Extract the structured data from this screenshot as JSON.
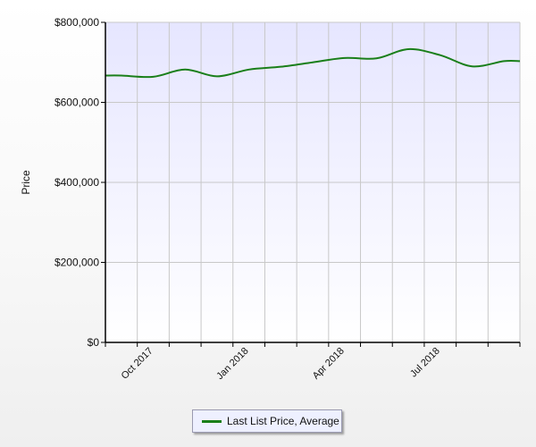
{
  "chart_data": {
    "type": "line",
    "title": "",
    "xlabel": "",
    "ylabel": "Price",
    "ylim": [
      0,
      800000
    ],
    "y_ticks": [
      {
        "value": 0,
        "label": "$0"
      },
      {
        "value": 200000,
        "label": "$200,000"
      },
      {
        "value": 400000,
        "label": "$400,000"
      },
      {
        "value": 600000,
        "label": "$600,000"
      },
      {
        "value": 800000,
        "label": "$800,000"
      }
    ],
    "x": [
      "Sep 2017",
      "Oct 2017",
      "Nov 2017",
      "Dec 2017",
      "Jan 2018",
      "Feb 2018",
      "Mar 2018",
      "Apr 2018",
      "May 2018",
      "Jun 2018",
      "Jul 2018",
      "Aug 2018",
      "Sep 2018"
    ],
    "x_tick_labels": [
      {
        "x": "Oct 2017",
        "label": "Oct 2017"
      },
      {
        "x": "Jan 2018",
        "label": "Jan 2018"
      },
      {
        "x": "Apr 2018",
        "label": "Apr 2018"
      },
      {
        "x": "Jul 2018",
        "label": "Jul 2018"
      }
    ],
    "series": [
      {
        "name": "Last List Price, Average",
        "color": "#1a7f1a",
        "values": [
          667000,
          664000,
          682000,
          665000,
          682000,
          689000,
          700000,
          711000,
          710000,
          733000,
          718000,
          690000,
          703000
        ]
      }
    ],
    "grid": true,
    "legend_position": "bottom-center",
    "colors": {
      "plot_background_top": "#e6e6ff",
      "plot_background_bottom": "#ffffff",
      "grid": "#c8c8c8",
      "axis": "#000000"
    }
  }
}
